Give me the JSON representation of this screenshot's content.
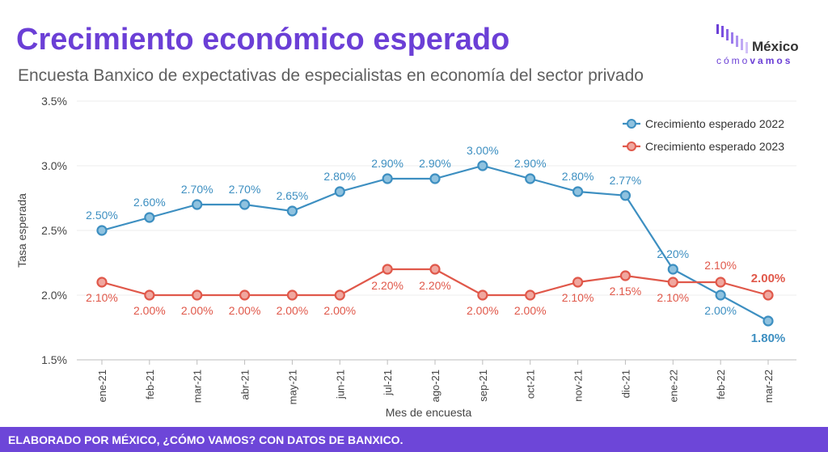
{
  "header": {
    "title": "Crecimiento económico esperado",
    "subtitle": "Encuesta Banxico de expectativas de especialistas en economía del sector privado"
  },
  "logo": {
    "line1": "México",
    "line2a": "cómo",
    "line2b": "vamos"
  },
  "footer": {
    "text": "ELABORADO POR MÉXICO, ¿CÓMO VAMOS? CON DATOS DE BANXICO."
  },
  "colors": {
    "accent": "#6b3fd6",
    "series2022": "#3d8fc1",
    "series2023": "#e0584a",
    "footer": "#6d46d8"
  },
  "chart_data": {
    "type": "line",
    "xlabel": "Mes de encuesta",
    "ylabel": "Tasa esperada",
    "ylim": [
      1.5,
      3.5
    ],
    "yticks": [
      "1.5%",
      "2.0%",
      "2.5%",
      "3.0%",
      "3.5%"
    ],
    "grid": true,
    "legend_position": "top-right",
    "categories": [
      "ene-21",
      "feb-21",
      "mar-21",
      "abr-21",
      "may-21",
      "jun-21",
      "jul-21",
      "ago-21",
      "sep-21",
      "oct-21",
      "nov-21",
      "dic-21",
      "ene-22",
      "feb-22",
      "mar-22"
    ],
    "series": [
      {
        "name": "Crecimiento esperado 2022",
        "color": "#3d8fc1",
        "values": [
          2.5,
          2.6,
          2.7,
          2.7,
          2.65,
          2.8,
          2.9,
          2.9,
          3.0,
          2.9,
          2.8,
          2.77,
          2.2,
          2.0,
          1.8
        ],
        "labels": [
          "2.50%",
          "2.60%",
          "2.70%",
          "2.70%",
          "2.65%",
          "2.80%",
          "2.90%",
          "2.90%",
          "3.00%",
          "2.90%",
          "2.80%",
          "2.77%",
          "2.20%",
          "2.00%",
          "1.80%"
        ]
      },
      {
        "name": "Crecimiento esperado 2023",
        "color": "#e0584a",
        "values": [
          2.1,
          2.0,
          2.0,
          2.0,
          2.0,
          2.0,
          2.2,
          2.2,
          2.0,
          2.0,
          2.1,
          2.15,
          2.1,
          2.1,
          2.0
        ],
        "labels": [
          "2.10%",
          "2.00%",
          "2.00%",
          "2.00%",
          "2.00%",
          "2.00%",
          "2.20%",
          "2.20%",
          "2.00%",
          "2.00%",
          "2.10%",
          "2.15%",
          "2.10%",
          "2.10%",
          "2.00%"
        ]
      }
    ]
  }
}
